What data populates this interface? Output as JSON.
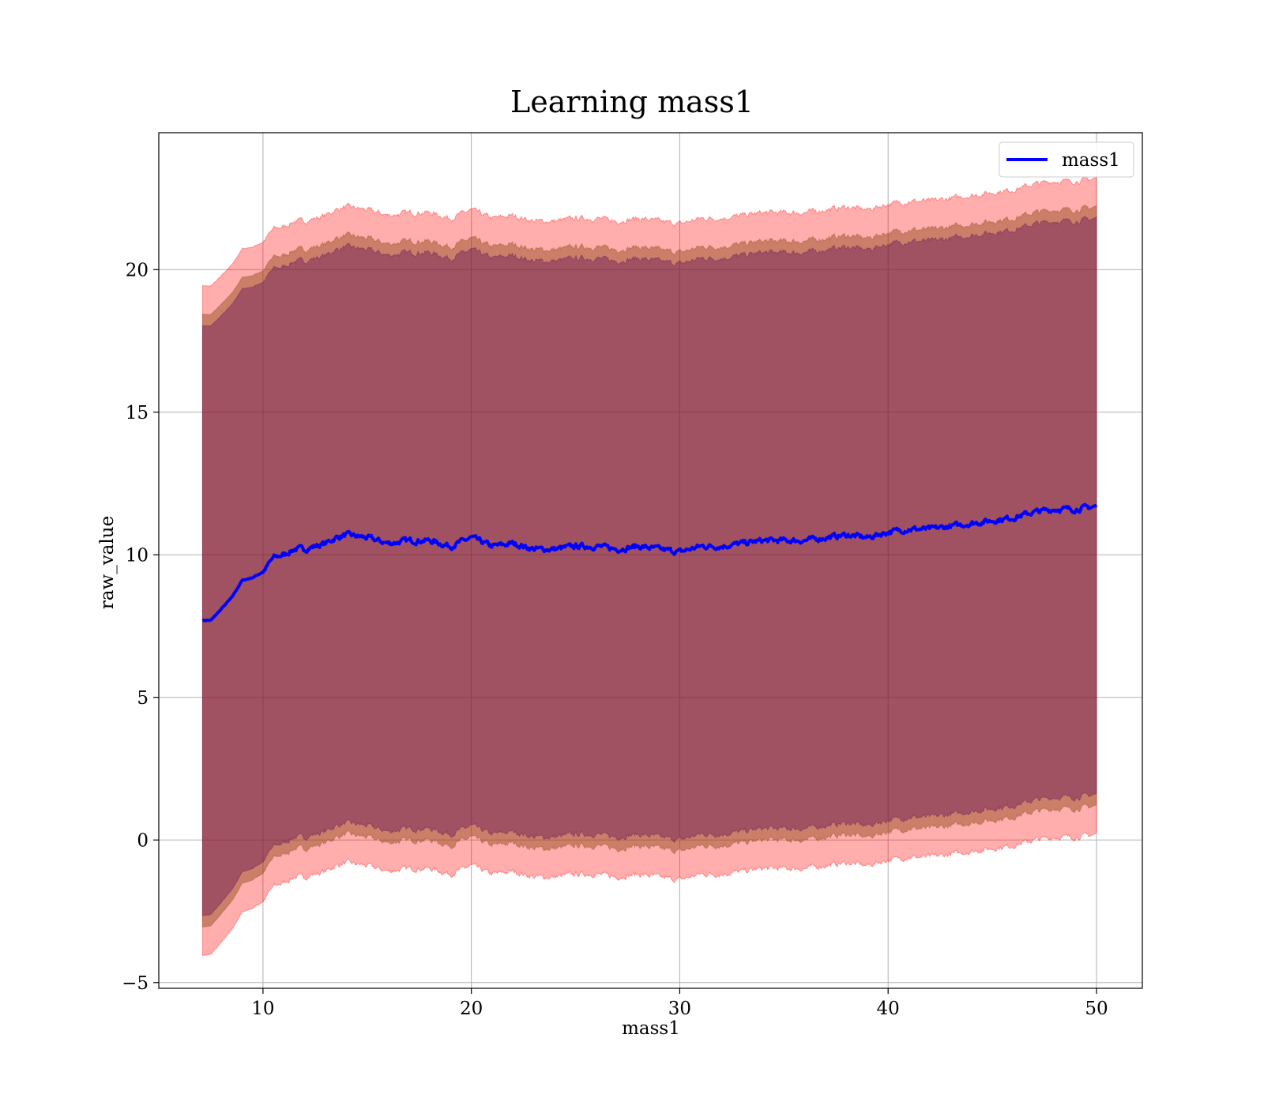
{
  "chart_data": {
    "type": "area",
    "title": "Learning mass1",
    "xlabel": "mass1",
    "ylabel": "raw_value",
    "xlim": [
      5,
      52.2
    ],
    "ylim": [
      -5.2,
      24.8
    ],
    "xticks": [
      10,
      20,
      30,
      40,
      50
    ],
    "yticks": [
      -5,
      0,
      5,
      10,
      15,
      20
    ],
    "ytick_labels": [
      "−5",
      "0",
      "5",
      "10",
      "15",
      "20"
    ],
    "grid": true,
    "legend": {
      "position": "top-right",
      "entries": [
        {
          "label": "mass1",
          "color": "#0000ff"
        }
      ]
    },
    "line": {
      "name": "mass1",
      "color": "#0000ff",
      "x": [
        7.1,
        7.5,
        8,
        8.5,
        9,
        9.5,
        10,
        10.5,
        11,
        11.5,
        12,
        12.5,
        13,
        13.5,
        14,
        15,
        16,
        17,
        18,
        19,
        20,
        21,
        22,
        23,
        24,
        25,
        26,
        27,
        28,
        29,
        30,
        31,
        32,
        33,
        34,
        35,
        36,
        37,
        38,
        39,
        40,
        41,
        42,
        43,
        44,
        45,
        46,
        47,
        48,
        49,
        50
      ],
      "y": [
        7.7,
        7.7,
        8.1,
        8.5,
        9.1,
        9.2,
        9.4,
        9.9,
        10.0,
        10.2,
        10.2,
        10.3,
        10.4,
        10.6,
        10.7,
        10.6,
        10.4,
        10.5,
        10.5,
        10.3,
        10.6,
        10.3,
        10.4,
        10.2,
        10.2,
        10.3,
        10.3,
        10.2,
        10.3,
        10.2,
        10.1,
        10.3,
        10.3,
        10.4,
        10.5,
        10.5,
        10.5,
        10.6,
        10.7,
        10.6,
        10.8,
        10.9,
        10.9,
        11.0,
        11.1,
        11.2,
        11.3,
        11.5,
        11.6,
        11.6,
        11.7
      ]
    },
    "bands": [
      {
        "color": "#ff0000",
        "opacity": 0.32,
        "offset": 11.5
      },
      {
        "color": "#8b4513",
        "opacity": 0.45,
        "offset": 10.5
      },
      {
        "color": "#5a0a5a",
        "opacity": 0.38,
        "offset": 10.1
      }
    ]
  }
}
